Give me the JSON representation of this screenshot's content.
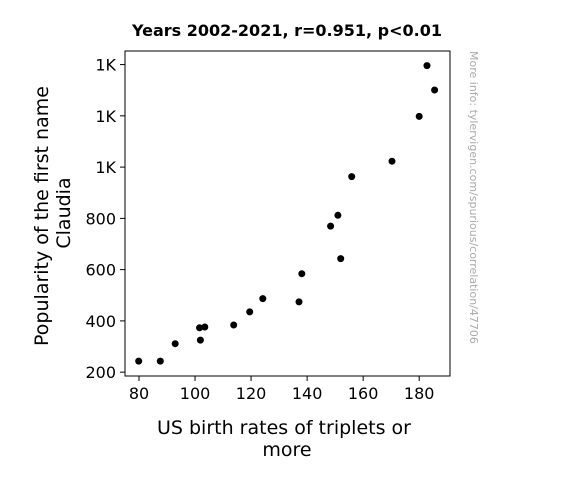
{
  "chart_data": {
    "type": "scatter",
    "title": "Years 2002-2021, r=0.951, p<0.01",
    "xlabel_lines": [
      "US birth rates of triplets or",
      "more"
    ],
    "ylabel_lines": [
      "Popularity of the first name",
      "Claudia"
    ],
    "xlim": [
      75,
      191
    ],
    "ylim": [
      185,
      1453
    ],
    "x_ticks": [
      80,
      100,
      120,
      140,
      160,
      180
    ],
    "x_tick_labels": [
      "80",
      "100",
      "120",
      "140",
      "160",
      "180"
    ],
    "y_ticks": [
      200,
      400,
      600,
      800,
      1000,
      1200,
      1400
    ],
    "y_tick_labels": [
      "200",
      "400",
      "600",
      "800",
      "1K",
      "1K",
      "1K"
    ],
    "grid": false,
    "point_color": "#000000",
    "points": [
      {
        "x": 79.9,
        "y": 243
      },
      {
        "x": 87.6,
        "y": 243
      },
      {
        "x": 92.9,
        "y": 311
      },
      {
        "x": 101.6,
        "y": 373
      },
      {
        "x": 101.9,
        "y": 325
      },
      {
        "x": 103.5,
        "y": 376
      },
      {
        "x": 113.8,
        "y": 384
      },
      {
        "x": 119.5,
        "y": 435
      },
      {
        "x": 124.2,
        "y": 487
      },
      {
        "x": 137.1,
        "y": 474
      },
      {
        "x": 138.1,
        "y": 584
      },
      {
        "x": 148.4,
        "y": 770
      },
      {
        "x": 151.0,
        "y": 812
      },
      {
        "x": 152.0,
        "y": 643
      },
      {
        "x": 155.9,
        "y": 963
      },
      {
        "x": 170.3,
        "y": 1023
      },
      {
        "x": 180.0,
        "y": 1198
      },
      {
        "x": 182.8,
        "y": 1396
      },
      {
        "x": 185.5,
        "y": 1301
      }
    ]
  },
  "watermark": "More info: tylervigen.com/spurious/correlation/47706"
}
